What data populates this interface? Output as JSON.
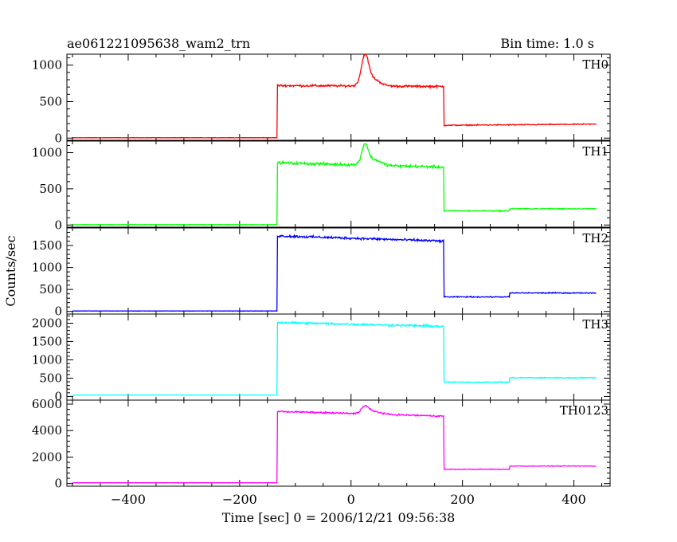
{
  "header": {
    "title": "ae061221095638_wam2_trn",
    "bin_time": "Bin time: 1.0 s"
  },
  "chart_data": {
    "type": "line",
    "xlabel": "Time [sec] 0 = 2006/12/21 09:56:38",
    "ylabel": "Counts/sec",
    "xlim": [
      -510,
      465
    ],
    "x_ticks": [
      -400,
      -200,
      0,
      200,
      400
    ],
    "x_tick_labels": [
      "−400",
      "−200",
      "0",
      "200",
      "400"
    ],
    "x_data_range": [
      -500,
      440
    ],
    "panels": [
      {
        "name": "TH0",
        "color": "#ff0000",
        "ylim": [
          -30,
          1150
        ],
        "y_ticks": [
          0,
          500,
          1000
        ],
        "segments": [
          {
            "x0": -500,
            "x1": -132,
            "level": 5,
            "noise": 3
          },
          {
            "x0": -132,
            "x1": 167,
            "level": 720,
            "noise": 22,
            "slope": -0.04
          },
          {
            "x0": 167,
            "x1": 440,
            "level": 175,
            "noise": 10,
            "slope": 0.06
          }
        ],
        "peaks": [
          {
            "x": 25,
            "height": 380,
            "width": 9
          },
          {
            "x": 38,
            "height": 100,
            "width": 18
          }
        ]
      },
      {
        "name": "TH1",
        "color": "#00ff00",
        "ylim": [
          -30,
          1160
        ],
        "y_ticks": [
          0,
          500,
          1000
        ],
        "segments": [
          {
            "x0": -500,
            "x1": -132,
            "level": 5,
            "noise": 3
          },
          {
            "x0": -132,
            "x1": 167,
            "level": 860,
            "noise": 28,
            "slope": -0.2
          },
          {
            "x0": 167,
            "x1": 285,
            "level": 195,
            "noise": 11
          },
          {
            "x0": 285,
            "x1": 440,
            "level": 225,
            "noise": 12
          }
        ],
        "peaks": [
          {
            "x": 25,
            "height": 260,
            "width": 8
          },
          {
            "x": 40,
            "height": 80,
            "width": 18
          }
        ]
      },
      {
        "name": "TH2",
        "color": "#0000ff",
        "ylim": [
          -60,
          1900
        ],
        "y_ticks": [
          0,
          500,
          1000,
          1500
        ],
        "segments": [
          {
            "x0": -500,
            "x1": -132,
            "level": 10,
            "noise": 4
          },
          {
            "x0": -132,
            "x1": 167,
            "level": 1720,
            "noise": 40,
            "slope": -0.4
          },
          {
            "x0": 167,
            "x1": 285,
            "level": 330,
            "noise": 18
          },
          {
            "x0": 285,
            "x1": 440,
            "level": 420,
            "noise": 18
          }
        ],
        "peaks": []
      },
      {
        "name": "TH3",
        "color": "#00ffff",
        "ylim": [
          -100,
          2250
        ],
        "y_ticks": [
          0,
          500,
          1000,
          1500,
          2000
        ],
        "segments": [
          {
            "x0": -500,
            "x1": -132,
            "level": 40,
            "noise": 5
          },
          {
            "x0": -132,
            "x1": 167,
            "level": 2020,
            "noise": 45,
            "slope": -0.35
          },
          {
            "x0": 167,
            "x1": 285,
            "level": 390,
            "noise": 20
          },
          {
            "x0": 285,
            "x1": 440,
            "level": 510,
            "noise": 20
          }
        ],
        "peaks": []
      },
      {
        "name": "TH0123",
        "color": "#ff00ff",
        "ylim": [
          -200,
          6300
        ],
        "y_ticks": [
          0,
          2000,
          4000,
          6000
        ],
        "segments": [
          {
            "x0": -500,
            "x1": -132,
            "level": 60,
            "noise": 10
          },
          {
            "x0": -132,
            "x1": 167,
            "level": 5450,
            "noise": 90,
            "slope": -1.2
          },
          {
            "x0": 167,
            "x1": 285,
            "level": 1080,
            "noise": 40
          },
          {
            "x0": 285,
            "x1": 440,
            "level": 1320,
            "noise": 40
          }
        ],
        "peaks": [
          {
            "x": 25,
            "height": 520,
            "width": 9
          },
          {
            "x": 40,
            "height": 200,
            "width": 18
          }
        ]
      }
    ]
  }
}
